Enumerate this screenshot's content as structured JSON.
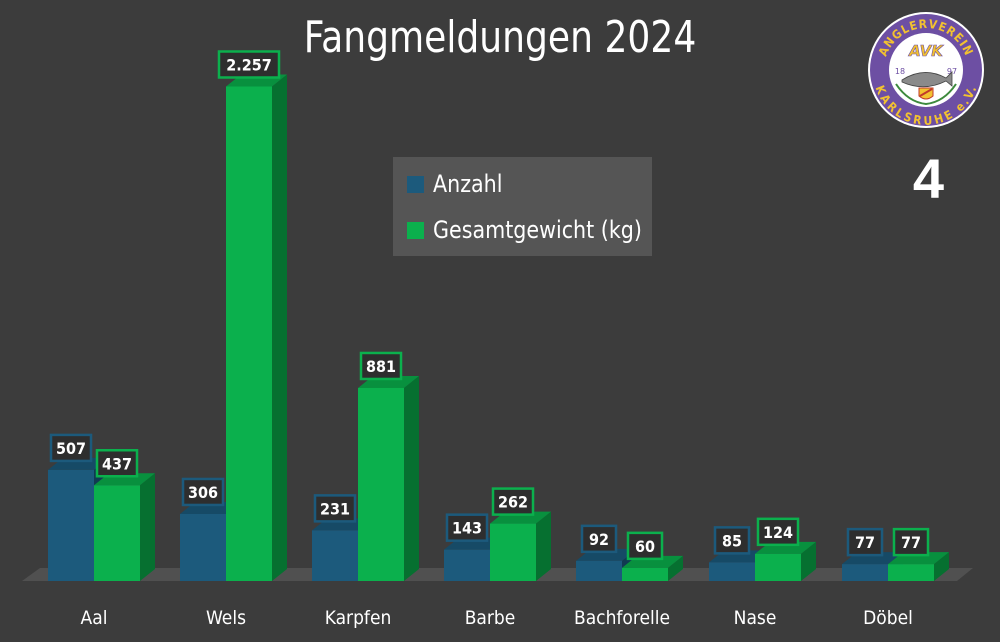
{
  "title": "Fangmeldungen 2024",
  "page_number": "4",
  "logo": {
    "text_top": "ANGLERVEREIN",
    "text_bottom": "KARLSRUHE e.V.",
    "monogram": "AVK",
    "year_left": "18",
    "year_right": "97",
    "colors": {
      "ring": "#6d4fa3",
      "text": "#f2c230",
      "inner": "#ffffff"
    }
  },
  "legend": {
    "items": [
      {
        "label": "Anzahl",
        "color": "#1c5a7c"
      },
      {
        "label": "Gesamtgewicht (kg)",
        "color": "#0bb04d"
      }
    ]
  },
  "chart_data": {
    "type": "bar",
    "title": "Fangmeldungen 2024",
    "categories": [
      "Aal",
      "Wels",
      "Karpfen",
      "Barbe",
      "Bachforelle",
      "Nase",
      "Döbel"
    ],
    "series": [
      {
        "name": "Anzahl",
        "values": [
          507,
          306,
          231,
          143,
          92,
          85,
          77
        ],
        "labels": [
          "507",
          "306",
          "231",
          "143",
          "92",
          "85",
          "77"
        ],
        "color": "#1c5a7c"
      },
      {
        "name": "Gesamtgewicht (kg)",
        "values": [
          437,
          2257,
          881,
          262,
          60,
          124,
          77
        ],
        "labels": [
          "437",
          "2.257",
          "881",
          "262",
          "60",
          "124",
          "77"
        ],
        "color": "#0bb04d"
      }
    ],
    "legend": "top-center",
    "grid": false,
    "three_d": true
  }
}
